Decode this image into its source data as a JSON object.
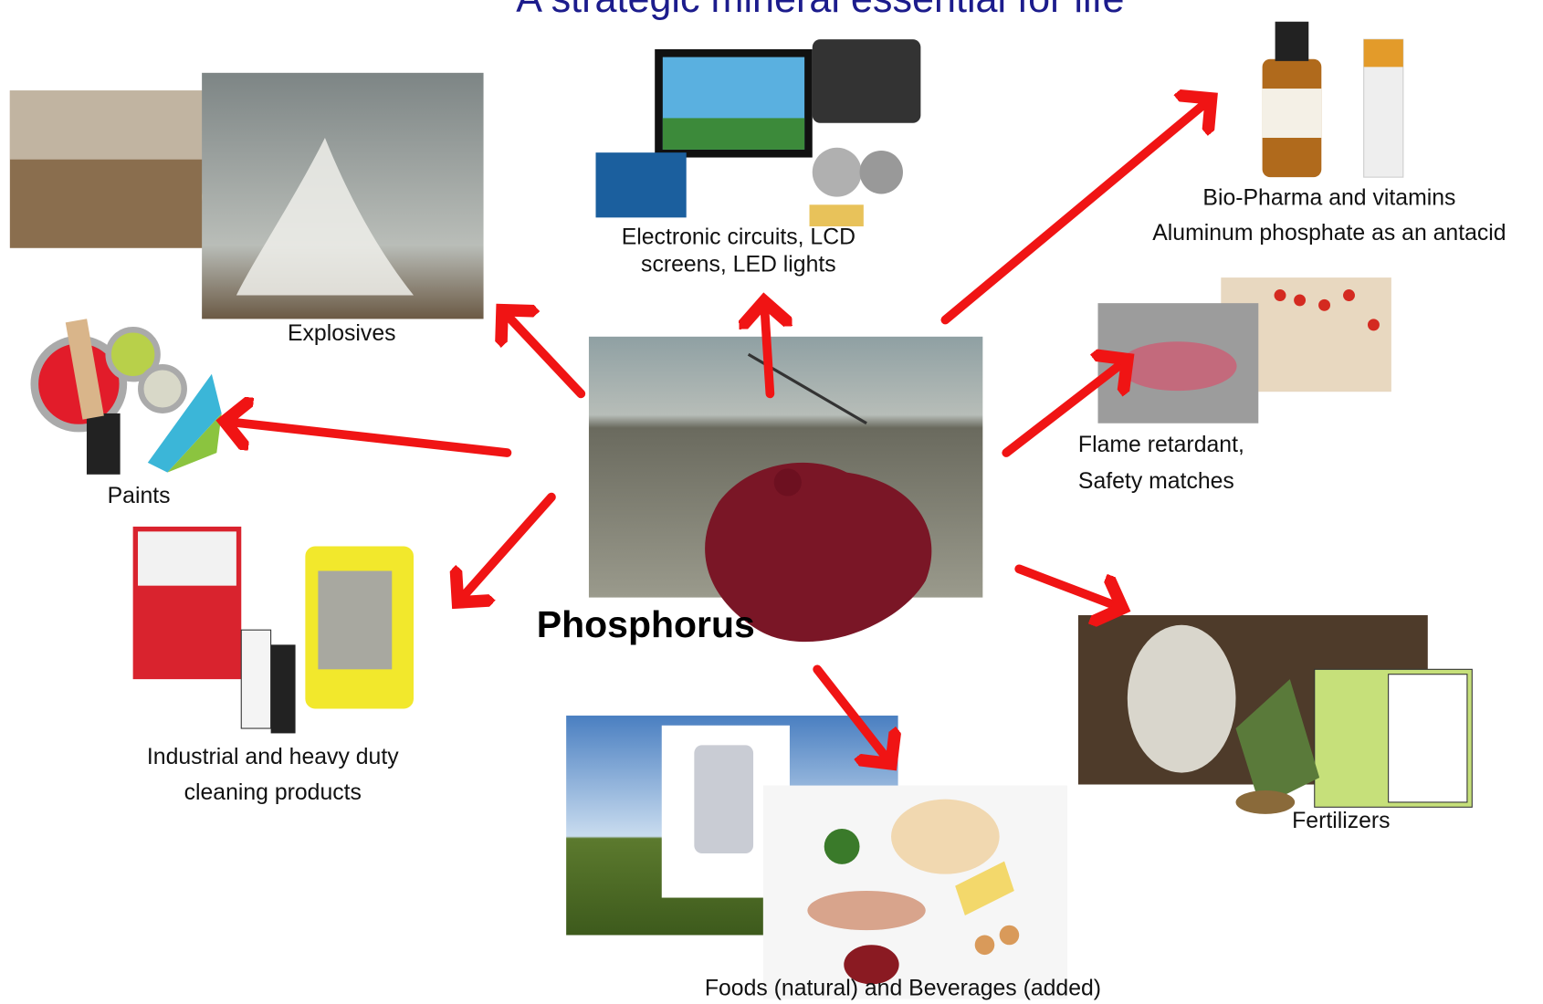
{
  "title": "A strategic mineral essential for life",
  "center_label": "Phosphorus",
  "uses": [
    {
      "lines": [
        "Explosives"
      ]
    },
    {
      "lines": [
        "Electronic circuits, LCD",
        "screens, LED lights"
      ]
    },
    {
      "lines": [
        "Bio-Pharma and vitamins",
        "Aluminum phosphate as an antacid"
      ]
    },
    {
      "lines": [
        "Paints"
      ]
    },
    {
      "lines": [
        "Flame retardant,",
        "Safety matches"
      ]
    },
    {
      "lines": [
        "Industrial and heavy duty",
        "cleaning products"
      ]
    },
    {
      "lines": [
        "Foods (natural) and Beverages (added)"
      ]
    },
    {
      "lines": [
        "Fertilizers"
      ]
    }
  ]
}
